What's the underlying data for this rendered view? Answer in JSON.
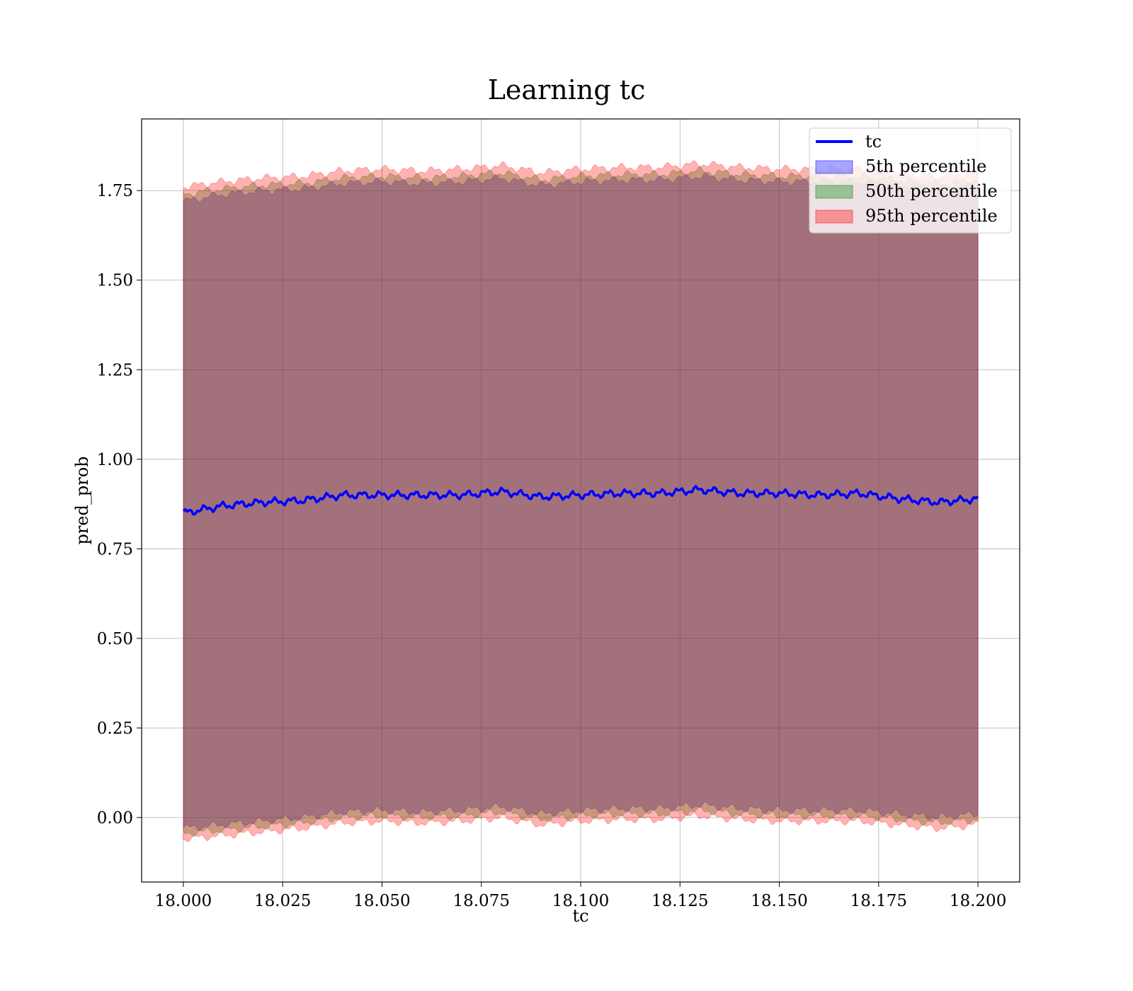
{
  "chart_data": {
    "type": "area",
    "title": "Learning tc",
    "xlabel": "tc",
    "ylabel": "pred_prob",
    "xlim": [
      17.9895,
      18.2105
    ],
    "ylim": [
      -0.18,
      1.95
    ],
    "grid": true,
    "legend_position": "top-right",
    "x_ticks": [
      18.0,
      18.025,
      18.05,
      18.075,
      18.1,
      18.125,
      18.15,
      18.175,
      18.2
    ],
    "x_tick_labels": [
      "18.000",
      "18.025",
      "18.050",
      "18.075",
      "18.100",
      "18.125",
      "18.150",
      "18.175",
      "18.200"
    ],
    "y_ticks": [
      0.0,
      0.25,
      0.5,
      0.75,
      1.0,
      1.25,
      1.5,
      1.75
    ],
    "y_tick_labels": [
      "0.00",
      "0.25",
      "0.50",
      "0.75",
      "1.00",
      "1.25",
      "1.50",
      "1.75"
    ],
    "x_range": [
      18.0,
      18.2
    ],
    "series": [
      {
        "name": "tc",
        "kind": "line",
        "color": "#0000ff",
        "x": [
          18.0,
          18.01,
          18.02,
          18.03,
          18.04,
          18.05,
          18.06,
          18.07,
          18.08,
          18.09,
          18.1,
          18.11,
          18.12,
          18.13,
          18.14,
          18.15,
          18.16,
          18.17,
          18.18,
          18.19,
          18.2
        ],
        "values": [
          0.85,
          0.87,
          0.88,
          0.885,
          0.9,
          0.9,
          0.9,
          0.9,
          0.91,
          0.895,
          0.9,
          0.905,
          0.905,
          0.915,
          0.905,
          0.905,
          0.9,
          0.905,
          0.89,
          0.88,
          0.89
        ]
      },
      {
        "name": "5th percentile",
        "kind": "band",
        "color": "#0000ff",
        "lower_values": [
          -0.03,
          -0.02,
          -0.01,
          0.0,
          0.015,
          0.02,
          0.015,
          0.02,
          0.03,
          0.01,
          0.02,
          0.025,
          0.025,
          0.035,
          0.025,
          0.02,
          0.02,
          0.02,
          0.01,
          0.0,
          0.01
        ],
        "upper_values": [
          1.72,
          1.74,
          1.75,
          1.755,
          1.77,
          1.775,
          1.77,
          1.775,
          1.785,
          1.765,
          1.775,
          1.78,
          1.78,
          1.79,
          1.78,
          1.775,
          1.775,
          1.775,
          1.765,
          1.755,
          1.765
        ]
      },
      {
        "name": "50th percentile",
        "kind": "band",
        "color": "#008000",
        "lower_values": [
          -0.045,
          -0.035,
          -0.025,
          -0.015,
          0.0,
          0.005,
          0.0,
          0.005,
          0.015,
          -0.005,
          0.005,
          0.01,
          0.01,
          0.02,
          0.01,
          0.005,
          0.005,
          0.005,
          -0.005,
          -0.015,
          -0.005
        ],
        "upper_values": [
          1.74,
          1.755,
          1.765,
          1.77,
          1.785,
          1.79,
          1.785,
          1.79,
          1.8,
          1.78,
          1.79,
          1.795,
          1.795,
          1.805,
          1.795,
          1.79,
          1.79,
          1.79,
          1.78,
          1.77,
          1.78
        ]
      },
      {
        "name": "95th percentile",
        "kind": "band",
        "color": "#ff0000",
        "lower_values": [
          -0.06,
          -0.05,
          -0.04,
          -0.03,
          -0.015,
          -0.01,
          -0.015,
          -0.01,
          0.0,
          -0.02,
          -0.01,
          -0.005,
          -0.005,
          0.005,
          -0.005,
          -0.01,
          -0.01,
          -0.01,
          -0.02,
          -0.03,
          -0.02
        ],
        "upper_values": [
          1.76,
          1.775,
          1.785,
          1.79,
          1.805,
          1.81,
          1.805,
          1.81,
          1.82,
          1.8,
          1.81,
          1.815,
          1.815,
          1.825,
          1.815,
          1.81,
          1.81,
          1.81,
          1.8,
          1.79,
          1.8
        ]
      }
    ]
  },
  "legend": {
    "items": [
      {
        "label": "tc"
      },
      {
        "label": "5th percentile"
      },
      {
        "label": "50th percentile"
      },
      {
        "label": "95th percentile"
      }
    ]
  }
}
